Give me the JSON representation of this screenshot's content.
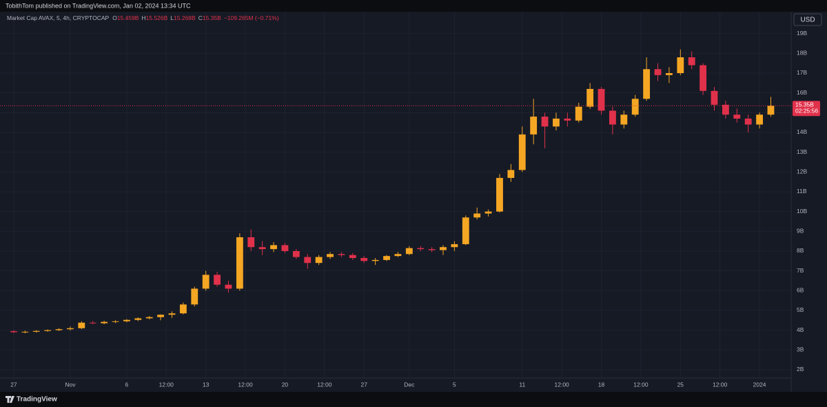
{
  "header": {
    "title": "TobithTom published on TradingView.com, Jan 02, 2024 13:34 UTC"
  },
  "footer": {
    "brand": "TradingView"
  },
  "chart_data": {
    "type": "candlestick",
    "title": "Market Cap AVAX, 5, 4h, CRYPTOCAP",
    "legend_values": [
      "O",
      "15.459B",
      "H",
      "15.526B",
      "L",
      "15.268B",
      "C",
      "15.35B",
      "−109.265M (−0.71%)"
    ],
    "currency": "USD",
    "last_price": {
      "value": 15.35,
      "label": "15.35B"
    },
    "countdown": "02:25:56",
    "up_color": "#f5a623",
    "down_color": "#e0314b",
    "grid": true,
    "xlim": [
      -0.85,
      68.8
    ],
    "ylim": [
      1.58,
      20.0
    ],
    "xticks": [
      {
        "value": 0,
        "label": "27"
      },
      {
        "value": 5,
        "label": "Nov"
      },
      {
        "value": 10,
        "label": "6"
      },
      {
        "value": 13.5,
        "label": "12:00"
      },
      {
        "value": 17,
        "label": "13"
      },
      {
        "value": 20.5,
        "label": "12:00"
      },
      {
        "value": 24,
        "label": "20"
      },
      {
        "value": 27.5,
        "label": "12:00"
      },
      {
        "value": 31,
        "label": "27"
      },
      {
        "value": 35,
        "label": "Dec"
      },
      {
        "value": 39,
        "label": "5"
      },
      {
        "value": 45,
        "label": "11"
      },
      {
        "value": 48.5,
        "label": "12:00"
      },
      {
        "value": 52,
        "label": "18"
      },
      {
        "value": 55.5,
        "label": "12:00"
      },
      {
        "value": 59,
        "label": "25"
      },
      {
        "value": 62.5,
        "label": "12:00"
      },
      {
        "value": 66,
        "label": "2024"
      }
    ],
    "yticks": [
      {
        "value": 2,
        "label": "2B"
      },
      {
        "value": 3,
        "label": "3B"
      },
      {
        "value": 4,
        "label": "4B"
      },
      {
        "value": 5,
        "label": "5B"
      },
      {
        "value": 6,
        "label": "6B"
      },
      {
        "value": 7,
        "label": "7B"
      },
      {
        "value": 8,
        "label": "8B"
      },
      {
        "value": 9,
        "label": "9B"
      },
      {
        "value": 10,
        "label": "10B"
      },
      {
        "value": 11,
        "label": "11B"
      },
      {
        "value": 12,
        "label": "12B"
      },
      {
        "value": 13,
        "label": "13B"
      },
      {
        "value": 14,
        "label": "14B"
      },
      {
        "value": 15,
        "label": "15B"
      },
      {
        "value": 16,
        "label": "16B"
      },
      {
        "value": 17,
        "label": "17B"
      },
      {
        "value": 18,
        "label": "18B"
      },
      {
        "value": 19,
        "label": "19B"
      }
    ],
    "x": [
      0,
      1,
      2,
      3,
      4,
      5,
      6,
      7,
      8,
      9,
      10,
      11,
      12,
      13,
      14,
      15,
      16,
      17,
      18,
      19,
      20,
      21,
      22,
      23,
      24,
      25,
      26,
      27,
      28,
      29,
      30,
      31,
      32,
      33,
      34,
      35,
      36,
      37,
      38,
      39,
      40,
      41,
      42,
      43,
      44,
      45,
      46,
      47,
      48,
      49,
      50,
      51,
      52,
      53,
      54,
      55,
      56,
      57,
      58,
      59,
      60,
      61,
      62,
      63,
      64,
      65,
      66,
      67
    ],
    "open": [
      3.95,
      3.9,
      3.92,
      3.96,
      4.0,
      4.05,
      4.1,
      4.38,
      4.35,
      4.42,
      4.45,
      4.52,
      4.6,
      4.66,
      4.78,
      4.85,
      5.3,
      6.1,
      6.8,
      6.3,
      6.1,
      8.7,
      8.2,
      8.1,
      8.3,
      8.0,
      7.7,
      7.4,
      7.7,
      7.85,
      7.8,
      7.65,
      7.5,
      7.55,
      7.75,
      7.85,
      8.15,
      8.1,
      8.05,
      8.2,
      8.35,
      9.7,
      9.9,
      10.0,
      11.7,
      12.1,
      13.9,
      14.8,
      14.3,
      14.7,
      14.6,
      15.3,
      16.2,
      15.1,
      14.4,
      14.9,
      15.7,
      17.2,
      16.9,
      17.0,
      17.8,
      17.4,
      16.1,
      15.4,
      14.9,
      14.7,
      14.4,
      14.9
    ],
    "high": [
      4.0,
      3.98,
      4.0,
      4.04,
      4.1,
      4.18,
      4.45,
      4.46,
      4.48,
      4.5,
      4.56,
      4.65,
      4.72,
      4.8,
      4.95,
      5.4,
      6.2,
      7.0,
      6.95,
      6.5,
      8.9,
      9.1,
      8.5,
      8.45,
      8.4,
      8.1,
      7.85,
      7.8,
      7.95,
      7.95,
      7.9,
      7.75,
      7.65,
      7.8,
      7.95,
      8.25,
      8.25,
      8.2,
      8.3,
      8.5,
      9.8,
      10.2,
      10.1,
      11.9,
      12.4,
      14.3,
      15.7,
      15.0,
      15.0,
      15.0,
      15.5,
      16.5,
      16.3,
      15.3,
      15.1,
      15.9,
      17.8,
      17.5,
      17.3,
      18.2,
      18.1,
      17.5,
      16.3,
      15.6,
      15.2,
      14.9,
      15.0,
      15.8
    ],
    "low": [
      3.85,
      3.84,
      3.88,
      3.92,
      3.96,
      3.98,
      4.05,
      4.3,
      4.3,
      4.36,
      4.4,
      4.46,
      4.55,
      4.5,
      4.62,
      4.8,
      5.2,
      6.0,
      6.2,
      5.9,
      6.0,
      8.0,
      7.8,
      7.95,
      7.9,
      7.6,
      7.1,
      7.3,
      7.6,
      7.7,
      7.55,
      7.4,
      7.3,
      7.5,
      7.7,
      7.8,
      8.0,
      7.95,
      7.8,
      8.0,
      8.3,
      9.6,
      9.75,
      9.95,
      11.5,
      12.0,
      13.4,
      13.2,
      14.1,
      14.3,
      14.5,
      15.2,
      14.9,
      13.9,
      14.2,
      14.8,
      15.6,
      16.6,
      16.5,
      16.9,
      17.2,
      15.9,
      15.1,
      14.7,
      14.5,
      14.0,
      14.2,
      14.8
    ],
    "close": [
      3.9,
      3.92,
      3.96,
      4.0,
      4.05,
      4.1,
      4.38,
      4.35,
      4.42,
      4.45,
      4.52,
      4.6,
      4.66,
      4.78,
      4.85,
      5.3,
      6.1,
      6.8,
      6.3,
      6.1,
      8.7,
      8.2,
      8.1,
      8.3,
      8.0,
      7.7,
      7.4,
      7.7,
      7.85,
      7.8,
      7.65,
      7.5,
      7.55,
      7.75,
      7.85,
      8.15,
      8.1,
      8.05,
      8.2,
      8.35,
      9.7,
      9.9,
      10.0,
      11.7,
      12.1,
      13.9,
      14.8,
      14.3,
      14.7,
      14.6,
      15.3,
      16.2,
      15.1,
      14.4,
      14.9,
      15.7,
      17.2,
      16.9,
      17.0,
      17.8,
      17.4,
      16.1,
      15.4,
      14.9,
      14.7,
      14.4,
      14.9,
      15.35
    ]
  }
}
